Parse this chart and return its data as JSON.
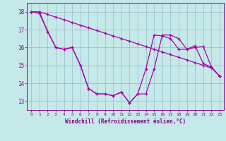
{
  "xlabel": "Windchill (Refroidissement éolien,°C)",
  "background_color": "#c5e8e8",
  "grid_color": "#99bbcc",
  "line_color": "#aa00aa",
  "x_values": [
    0,
    1,
    2,
    3,
    4,
    5,
    6,
    7,
    8,
    9,
    10,
    11,
    12,
    13,
    14,
    15,
    16,
    17,
    18,
    19,
    20,
    21,
    22,
    23
  ],
  "line1": [
    18.0,
    18.0,
    17.85,
    17.7,
    17.55,
    17.4,
    17.25,
    17.1,
    16.95,
    16.8,
    16.65,
    16.5,
    16.35,
    16.2,
    16.05,
    15.9,
    15.75,
    15.6,
    15.45,
    15.3,
    15.15,
    15.0,
    14.85,
    14.4
  ],
  "line2": [
    18.0,
    18.0,
    16.9,
    16.0,
    15.9,
    16.0,
    15.0,
    13.7,
    13.4,
    13.4,
    13.3,
    13.5,
    12.9,
    13.4,
    13.4,
    14.8,
    16.7,
    16.7,
    16.5,
    15.9,
    16.1,
    15.1,
    14.9,
    14.4
  ],
  "line3": [
    18.0,
    17.9,
    16.9,
    16.0,
    15.9,
    16.0,
    15.0,
    13.7,
    13.4,
    13.4,
    13.3,
    13.5,
    12.9,
    13.4,
    14.8,
    16.7,
    16.65,
    16.5,
    15.9,
    15.9,
    16.0,
    16.05,
    14.9,
    14.4
  ],
  "ylim": [
    12.5,
    18.5
  ],
  "yticks": [
    13,
    14,
    15,
    16,
    17,
    18
  ],
  "xticks": [
    0,
    1,
    2,
    3,
    4,
    5,
    6,
    7,
    8,
    9,
    10,
    11,
    12,
    13,
    14,
    15,
    16,
    17,
    18,
    19,
    20,
    21,
    22,
    23
  ]
}
